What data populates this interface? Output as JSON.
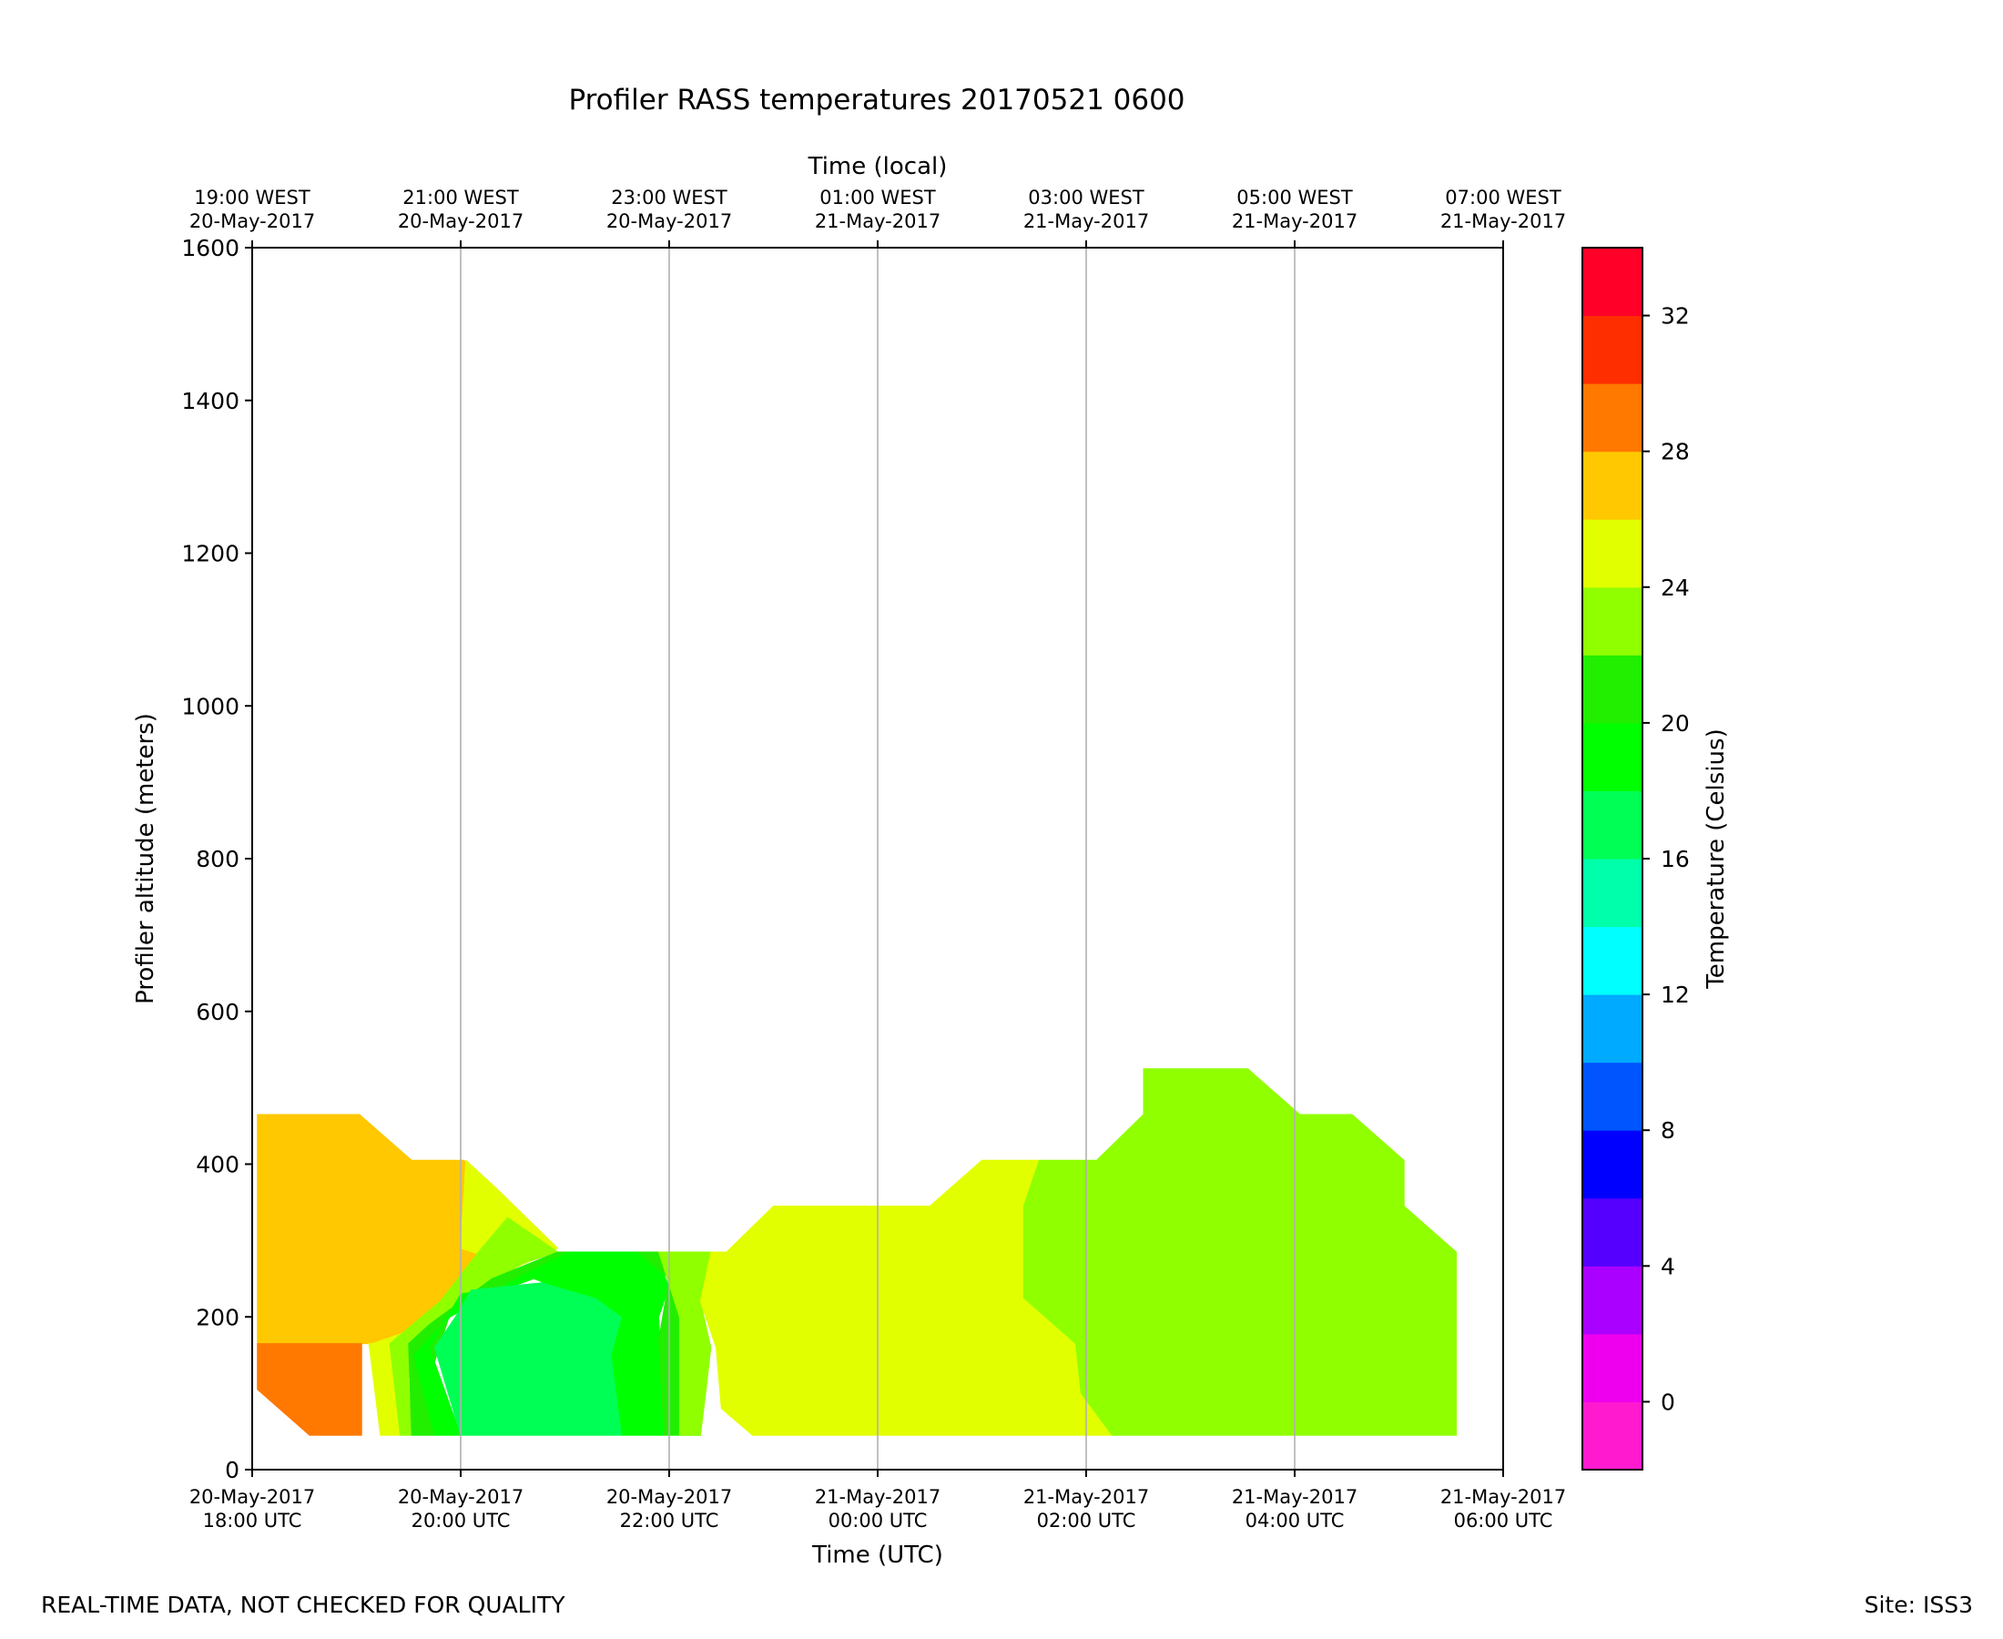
{
  "chart_data": {
    "type": "contourf",
    "title": "Profiler RASS temperatures 20170521 0600",
    "xlabel": "Time (UTC)",
    "xlabel_top": "Time (local)",
    "ylabel": "Profiler altitude (meters)",
    "ylim": [
      0,
      1600
    ],
    "yticks": [
      "0",
      "200",
      "400",
      "600",
      "800",
      "1000",
      "1200",
      "1400",
      "1600"
    ],
    "xlim_hours": [
      0,
      12
    ],
    "xticks_bottom": [
      {
        "h": 0,
        "l1": "20-May-2017",
        "l2": "18:00 UTC"
      },
      {
        "h": 2,
        "l1": "20-May-2017",
        "l2": "20:00 UTC"
      },
      {
        "h": 4,
        "l1": "20-May-2017",
        "l2": "22:00 UTC"
      },
      {
        "h": 6,
        "l1": "21-May-2017",
        "l2": "00:00 UTC"
      },
      {
        "h": 8,
        "l1": "21-May-2017",
        "l2": "02:00 UTC"
      },
      {
        "h": 10,
        "l1": "21-May-2017",
        "l2": "04:00 UTC"
      },
      {
        "h": 12,
        "l1": "21-May-2017",
        "l2": "06:00 UTC"
      }
    ],
    "xticks_top": [
      {
        "h": 0,
        "l1": "19:00 WEST",
        "l2": "20-May-2017"
      },
      {
        "h": 2,
        "l1": "21:00 WEST",
        "l2": "20-May-2017"
      },
      {
        "h": 4,
        "l1": "23:00 WEST",
        "l2": "20-May-2017"
      },
      {
        "h": 6,
        "l1": "01:00 WEST",
        "l2": "21-May-2017"
      },
      {
        "h": 8,
        "l1": "03:00 WEST",
        "l2": "21-May-2017"
      },
      {
        "h": 10,
        "l1": "05:00 WEST",
        "l2": "21-May-2017"
      },
      {
        "h": 12,
        "l1": "07:00 WEST",
        "l2": "21-May-2017"
      }
    ],
    "grid_x": true,
    "colorbar": {
      "label": "Temperature (Celsius)",
      "min": -2,
      "max": 34,
      "step": 2,
      "ticks": [
        "0",
        "4",
        "8",
        "12",
        "16",
        "20",
        "24",
        "28",
        "32"
      ],
      "colors": [
        "#ff1ad0",
        "#ee00ee",
        "#aa00ff",
        "#5500ff",
        "#0000ff",
        "#0055ff",
        "#00aaff",
        "#00ffff",
        "#00ffaa",
        "#00ff55",
        "#00ff00",
        "#22ee00",
        "#90ff00",
        "#e2ff00",
        "#ffc800",
        "#ff7800",
        "#ff2e00",
        "#ff0028"
      ]
    },
    "regions": [
      {
        "temp": "26-28",
        "color": "#ffc800",
        "poly": [
          [
            0.05,
            465
          ],
          [
            1.03,
            465
          ],
          [
            1.53,
            405
          ],
          [
            2.03,
            405
          ],
          [
            2.33,
            370
          ],
          [
            2.63,
            330
          ],
          [
            2.93,
            290
          ],
          [
            2.3,
            250
          ],
          [
            1.83,
            200
          ],
          [
            1.15,
            165
          ],
          [
            0.05,
            165
          ]
        ]
      },
      {
        "temp": "28-30",
        "color": "#ff7800",
        "poly": [
          [
            0.05,
            165
          ],
          [
            1.05,
            165
          ],
          [
            1.05,
            45
          ],
          [
            0.55,
            45
          ],
          [
            0.05,
            105
          ]
        ]
      },
      {
        "temp": "24-26",
        "color": "#e2ff00",
        "poly": [
          [
            2.05,
            405
          ],
          [
            2.33,
            370
          ],
          [
            2.63,
            330
          ],
          [
            2.93,
            290
          ],
          [
            2.3,
            250
          ],
          [
            1.9,
            200
          ],
          [
            1.15,
            165
          ],
          [
            1.12,
            165
          ],
          [
            1.23,
            45
          ],
          [
            1.42,
            45
          ],
          [
            1.32,
            165
          ],
          [
            1.8,
            200
          ],
          [
            2.2,
            250
          ],
          [
            2.45,
            270
          ],
          [
            2.0,
            290
          ]
        ]
      },
      {
        "temp": "22-24",
        "color": "#90ff00",
        "poly": [
          [
            1.32,
            165
          ],
          [
            1.42,
            45
          ],
          [
            1.53,
            45
          ],
          [
            1.5,
            120
          ],
          [
            1.6,
            175
          ],
          [
            2.1,
            230
          ],
          [
            2.6,
            270
          ],
          [
            2.93,
            285
          ],
          [
            2.45,
            330
          ],
          [
            2.2,
            290
          ],
          [
            1.8,
            220
          ]
        ]
      },
      {
        "temp": "20-22",
        "color": "#22ee00",
        "poly": [
          [
            1.5,
            165
          ],
          [
            1.53,
            45
          ],
          [
            1.75,
            45
          ],
          [
            1.7,
            120
          ],
          [
            1.9,
            205
          ],
          [
            2.6,
            255
          ],
          [
            3.03,
            285
          ],
          [
            2.93,
            285
          ],
          [
            2.3,
            250
          ],
          [
            1.7,
            190
          ]
        ]
      },
      {
        "temp": "18-20",
        "color": "#00ff00",
        "poly": [
          [
            1.55,
            150
          ],
          [
            1.75,
            45
          ],
          [
            2.0,
            45
          ],
          [
            1.7,
            160
          ],
          [
            2.0,
            230
          ],
          [
            2.5,
            240
          ],
          [
            3.1,
            270
          ],
          [
            3.03,
            285
          ],
          [
            2.6,
            255
          ],
          [
            1.9,
            200
          ]
        ]
      },
      {
        "temp": "16-18",
        "color": "#00ff55",
        "poly": [
          [
            1.75,
            160
          ],
          [
            2.0,
            45
          ],
          [
            3.55,
            45
          ],
          [
            3.55,
            200
          ],
          [
            3.3,
            225
          ],
          [
            2.8,
            245
          ],
          [
            2.1,
            235
          ],
          [
            1.95,
            200
          ]
        ]
      },
      {
        "temp": "18-20",
        "color": "#00ff00",
        "poly": [
          [
            3.03,
            285
          ],
          [
            3.7,
            285
          ],
          [
            3.9,
            270
          ],
          [
            4.0,
            240
          ],
          [
            3.9,
            200
          ],
          [
            3.95,
            45
          ],
          [
            3.55,
            45
          ],
          [
            3.45,
            150
          ],
          [
            3.55,
            200
          ],
          [
            3.3,
            225
          ],
          [
            2.8,
            245
          ],
          [
            2.6,
            255
          ]
        ]
      },
      {
        "temp": "20-22",
        "color": "#22ee00",
        "poly": [
          [
            3.7,
            285
          ],
          [
            3.9,
            285
          ],
          [
            4.1,
            200
          ],
          [
            4.3,
            160
          ],
          [
            4.3,
            45
          ],
          [
            3.95,
            45
          ],
          [
            3.9,
            170
          ],
          [
            4.0,
            250
          ]
        ]
      },
      {
        "temp": "22-24",
        "color": "#90ff00",
        "poly": [
          [
            3.9,
            285
          ],
          [
            4.4,
            285
          ],
          [
            4.3,
            220
          ],
          [
            4.4,
            160
          ],
          [
            4.35,
            100
          ],
          [
            4.3,
            45
          ],
          [
            4.1,
            45
          ],
          [
            4.1,
            200
          ]
        ]
      },
      {
        "temp": "24-26",
        "color": "#e2ff00",
        "poly": [
          [
            4.4,
            285
          ],
          [
            4.55,
            285
          ],
          [
            5.0,
            345
          ],
          [
            6.5,
            345
          ],
          [
            7.0,
            405
          ],
          [
            7.55,
            405
          ],
          [
            7.4,
            345
          ],
          [
            7.4,
            225
          ],
          [
            7.9,
            165
          ],
          [
            7.95,
            100
          ],
          [
            8.25,
            45
          ],
          [
            4.8,
            45
          ],
          [
            4.5,
            80
          ],
          [
            4.45,
            160
          ],
          [
            4.3,
            220
          ]
        ]
      },
      {
        "temp": "22-24",
        "color": "#90ff00",
        "poly": [
          [
            7.55,
            405
          ],
          [
            8.1,
            405
          ],
          [
            8.55,
            465
          ],
          [
            8.55,
            525
          ],
          [
            9.55,
            525
          ],
          [
            10.05,
            465
          ],
          [
            10.55,
            465
          ],
          [
            11.05,
            405
          ],
          [
            11.05,
            345
          ],
          [
            11.55,
            285
          ],
          [
            11.55,
            45
          ],
          [
            8.25,
            45
          ],
          [
            7.95,
            100
          ],
          [
            7.9,
            165
          ],
          [
            7.4,
            225
          ],
          [
            7.4,
            345
          ]
        ]
      }
    ]
  },
  "footer": {
    "left": "REAL-TIME DATA, NOT CHECKED FOR QUALITY",
    "right": "Site: ISS3"
  }
}
